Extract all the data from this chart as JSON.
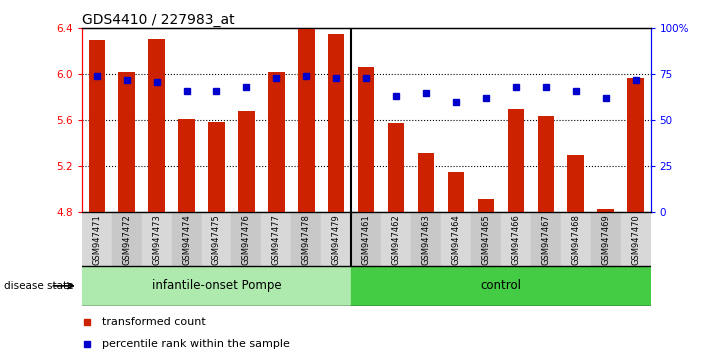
{
  "title": "GDS4410 / 227983_at",
  "categories": [
    "GSM947471",
    "GSM947472",
    "GSM947473",
    "GSM947474",
    "GSM947475",
    "GSM947476",
    "GSM947477",
    "GSM947478",
    "GSM947479",
    "GSM947461",
    "GSM947462",
    "GSM947463",
    "GSM947464",
    "GSM947465",
    "GSM947466",
    "GSM947467",
    "GSM947468",
    "GSM947469",
    "GSM947470"
  ],
  "red_values": [
    6.3,
    6.02,
    6.31,
    5.61,
    5.59,
    5.68,
    6.02,
    6.39,
    6.35,
    6.06,
    5.58,
    5.32,
    5.15,
    4.92,
    5.7,
    5.64,
    5.3,
    4.83,
    5.97
  ],
  "blue_values": [
    74,
    72,
    71,
    66,
    66,
    68,
    73,
    74,
    73,
    73,
    63,
    65,
    60,
    62,
    68,
    68,
    66,
    62,
    72
  ],
  "ylim_left": [
    4.8,
    6.4
  ],
  "ylim_right": [
    0,
    100
  ],
  "yticks_left": [
    4.8,
    5.2,
    5.6,
    6.0,
    6.4
  ],
  "yticks_right": [
    0,
    25,
    50,
    75,
    100
  ],
  "ytick_labels_right": [
    "0",
    "25",
    "50",
    "75",
    "100%"
  ],
  "bar_color": "#cc2200",
  "dot_color": "#0000cc",
  "bar_bottom": 4.8,
  "legend_items": [
    "transformed count",
    "percentile rank within the sample"
  ],
  "disease_state_label": "disease state",
  "n_pompe": 9,
  "pompe_color": "#aeeaae",
  "control_color": "#44cc44",
  "bg_color_even": "#d8d8d8",
  "bg_color_odd": "#c8c8c8"
}
